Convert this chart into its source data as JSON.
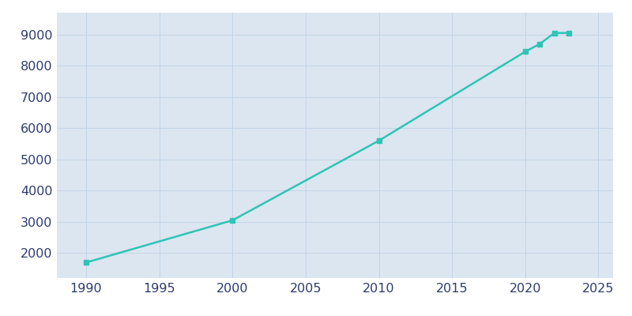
{
  "years": [
    1990,
    2000,
    2010,
    2020,
    2021,
    2022,
    2023
  ],
  "population": [
    1700,
    3050,
    5600,
    8450,
    8700,
    9050,
    9050
  ],
  "line_color": "#2ec4b6",
  "marker_color": "#2ec4b6",
  "plot_background_color": "#dce6f0",
  "figure_background_color": "#ffffff",
  "grid_color": "#c5d5e8",
  "xlim": [
    1988,
    2026
  ],
  "ylim": [
    1200,
    9700
  ],
  "xticks": [
    1990,
    1995,
    2000,
    2005,
    2010,
    2015,
    2020,
    2025
  ],
  "yticks": [
    2000,
    3000,
    4000,
    5000,
    6000,
    7000,
    8000,
    9000
  ],
  "tick_label_color": "#2d3c6e",
  "tick_fontsize": 11.5,
  "marker_size": 4,
  "line_width": 1.8
}
